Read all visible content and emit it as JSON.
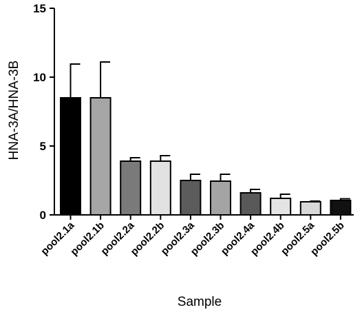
{
  "chart_data": {
    "type": "bar",
    "title": "",
    "xlabel": "Sample",
    "ylabel": "HNA-3A/HNA-3B",
    "ylim": [
      0,
      15
    ],
    "yticks": [
      0,
      5,
      10,
      15
    ],
    "grid": false,
    "categories": [
      "pool2.1a",
      "pool2.1b",
      "pool2.2a",
      "pool2.2b",
      "pool2.3a",
      "pool2.3b",
      "pool2.4a",
      "pool2.4b",
      "pool2.5a",
      "pool2.5b"
    ],
    "values": [
      8.5,
      8.5,
      3.9,
      3.9,
      2.5,
      2.45,
      1.6,
      1.2,
      0.95,
      1.05
    ],
    "error": [
      2.45,
      2.6,
      0.25,
      0.4,
      0.45,
      0.5,
      0.25,
      0.3,
      0.05,
      0.12
    ],
    "colors": [
      "#000000",
      "#a6a6a6",
      "#7a7a7a",
      "#e2e2e2",
      "#5c5c5c",
      "#a4a4a4",
      "#595959",
      "#e4e4e4",
      "#d8d8d8",
      "#111111"
    ]
  }
}
